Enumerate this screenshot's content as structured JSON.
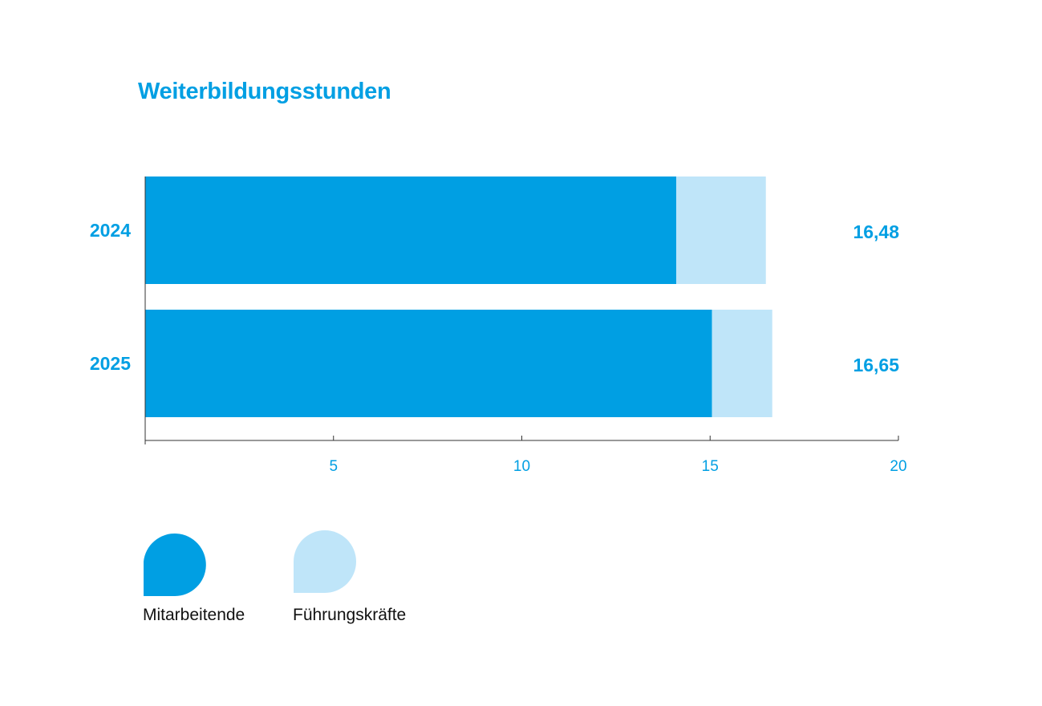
{
  "chart_data": {
    "type": "bar",
    "orientation": "horizontal",
    "stacked": true,
    "title": "Weiterbildungsstunden",
    "categories": [
      "2024",
      "2025"
    ],
    "series": [
      {
        "name": "Mitarbeitende",
        "color": "#009fe3",
        "values": [
          14.1,
          15.05
        ]
      },
      {
        "name": "Führungskräfte",
        "color": "#bfe5f9",
        "values": [
          2.38,
          1.6
        ]
      }
    ],
    "totals": [
      "16,48",
      "16,65"
    ],
    "xlim": [
      0,
      20
    ],
    "xticks": [
      5,
      10,
      15,
      20
    ],
    "grid": false,
    "legend_position": "bottom-left"
  }
}
